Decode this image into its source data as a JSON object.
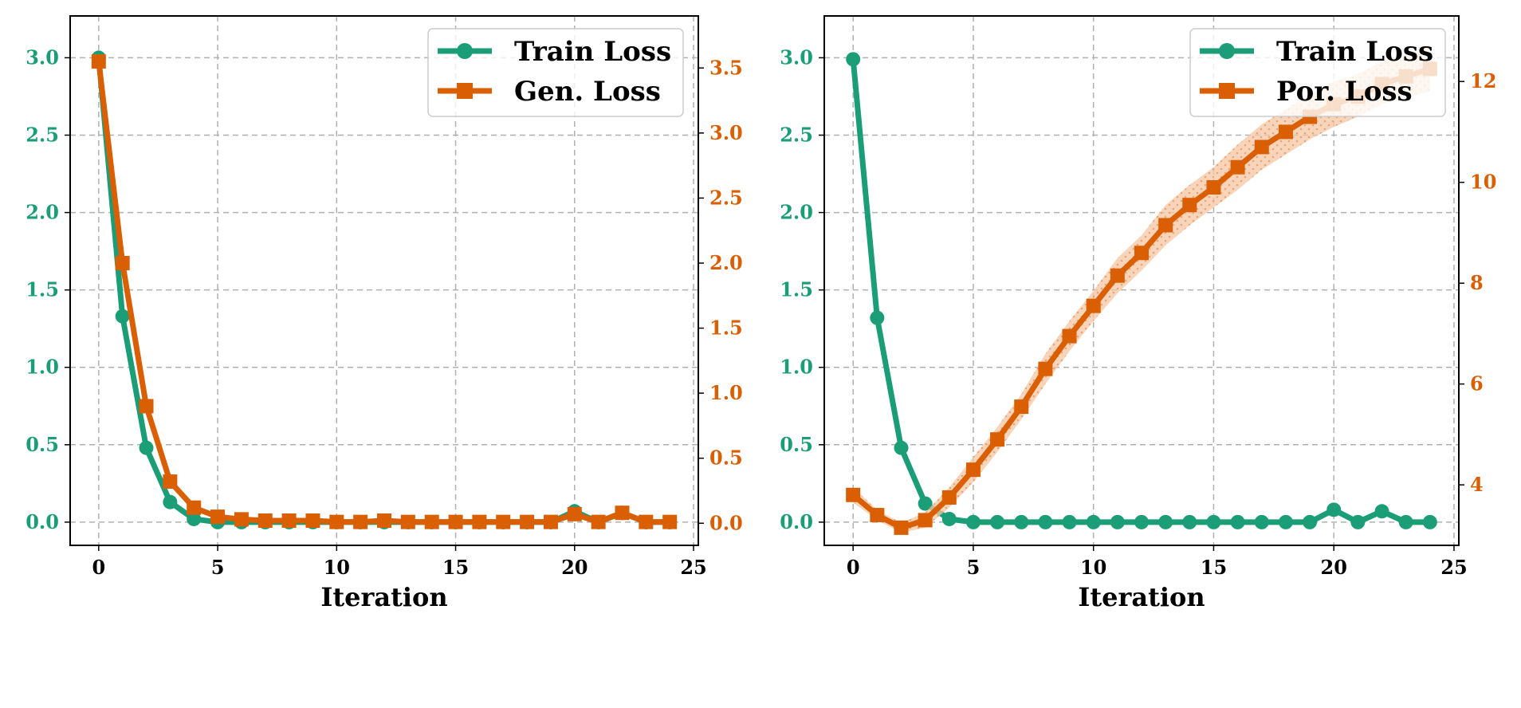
{
  "colors": {
    "train": "#1b9e77",
    "other": "#d95f02",
    "grid": "#b0b0b0"
  },
  "chart_data": [
    {
      "type": "line",
      "xlabel": "Iteration",
      "x_ticks": [
        0,
        5,
        10,
        15,
        20,
        25
      ],
      "xlim": [
        -1.2,
        25.2
      ],
      "left_axis": {
        "ylim": [
          -0.15,
          3.27
        ],
        "ticks": [
          0.0,
          0.5,
          1.0,
          1.5,
          2.0,
          2.5,
          3.0
        ]
      },
      "right_axis": {
        "ylim": [
          -0.17,
          3.9
        ],
        "ticks": [
          0.0,
          0.5,
          1.0,
          1.5,
          2.0,
          2.5,
          3.0,
          3.5
        ]
      },
      "legend": {
        "placement": "top-right"
      },
      "grid": true,
      "series": [
        {
          "name": "Train Loss",
          "axis": "left",
          "marker": "circle",
          "x": [
            0,
            1,
            2,
            3,
            4,
            5,
            6,
            7,
            8,
            9,
            10,
            11,
            12,
            13,
            14,
            15,
            16,
            17,
            18,
            19,
            20,
            21,
            22,
            23,
            24
          ],
          "values": [
            3.0,
            1.33,
            0.48,
            0.13,
            0.02,
            0.0,
            0.0,
            0.0,
            0.0,
            0.0,
            0.0,
            0.0,
            0.0,
            0.0,
            0.0,
            0.0,
            0.0,
            0.0,
            0.0,
            0.0,
            0.07,
            0.0,
            0.06,
            0.0,
            0.0
          ]
        },
        {
          "name": "Gen. Loss",
          "axis": "right",
          "marker": "square",
          "x": [
            0,
            1,
            2,
            3,
            4,
            5,
            6,
            7,
            8,
            9,
            10,
            11,
            12,
            13,
            14,
            15,
            16,
            17,
            18,
            19,
            20,
            21,
            22,
            23,
            24
          ],
          "values": [
            3.55,
            2.0,
            0.9,
            0.32,
            0.12,
            0.05,
            0.03,
            0.02,
            0.02,
            0.02,
            0.01,
            0.01,
            0.02,
            0.01,
            0.01,
            0.01,
            0.01,
            0.01,
            0.01,
            0.01,
            0.07,
            0.01,
            0.08,
            0.01,
            0.01
          ]
        }
      ]
    },
    {
      "type": "line",
      "xlabel": "Iteration",
      "x_ticks": [
        0,
        5,
        10,
        15,
        20,
        25
      ],
      "xlim": [
        -1.2,
        25.2
      ],
      "left_axis": {
        "ylim": [
          -0.15,
          3.27
        ],
        "ticks": [
          0.0,
          0.5,
          1.0,
          1.5,
          2.0,
          2.5,
          3.0
        ]
      },
      "right_axis": {
        "ylim": [
          2.8,
          13.3
        ],
        "ticks": [
          4,
          6,
          8,
          10,
          12
        ]
      },
      "legend": {
        "placement": "top-right"
      },
      "grid": true,
      "series": [
        {
          "name": "Train Loss",
          "axis": "left",
          "marker": "circle",
          "x": [
            0,
            1,
            2,
            3,
            4,
            5,
            6,
            7,
            8,
            9,
            10,
            11,
            12,
            13,
            14,
            15,
            16,
            17,
            18,
            19,
            20,
            21,
            22,
            23,
            24
          ],
          "values": [
            2.99,
            1.32,
            0.48,
            0.12,
            0.02,
            0.0,
            0.0,
            0.0,
            0.0,
            0.0,
            0.0,
            0.0,
            0.0,
            0.0,
            0.0,
            0.0,
            0.0,
            0.0,
            0.0,
            0.0,
            0.08,
            0.0,
            0.07,
            0.0,
            0.0
          ]
        },
        {
          "name": "Por. Loss",
          "axis": "right",
          "marker": "square",
          "band": "shaded",
          "x": [
            0,
            1,
            2,
            3,
            4,
            5,
            6,
            7,
            8,
            9,
            10,
            11,
            12,
            13,
            14,
            15,
            16,
            17,
            18,
            19,
            20,
            21,
            22,
            23,
            24
          ],
          "values": [
            3.8,
            3.4,
            3.15,
            3.3,
            3.75,
            4.3,
            4.9,
            5.55,
            6.3,
            6.95,
            7.55,
            8.15,
            8.6,
            9.15,
            9.55,
            9.9,
            10.3,
            10.7,
            11.0,
            11.3,
            11.55,
            11.7,
            11.95,
            12.1,
            12.25
          ],
          "band_low": [
            3.65,
            3.3,
            3.05,
            3.15,
            3.55,
            4.05,
            4.65,
            5.3,
            6.0,
            6.65,
            7.25,
            7.8,
            8.25,
            8.75,
            9.15,
            9.5,
            9.85,
            10.25,
            10.55,
            10.85,
            11.1,
            11.3,
            11.55,
            11.7,
            11.8
          ],
          "band_high": [
            3.95,
            3.5,
            3.25,
            3.45,
            3.95,
            4.55,
            5.15,
            5.8,
            6.6,
            7.25,
            7.85,
            8.5,
            8.95,
            9.55,
            9.95,
            10.3,
            10.75,
            11.15,
            11.45,
            11.75,
            12.0,
            12.15,
            12.4,
            12.55,
            12.7
          ]
        }
      ]
    }
  ]
}
